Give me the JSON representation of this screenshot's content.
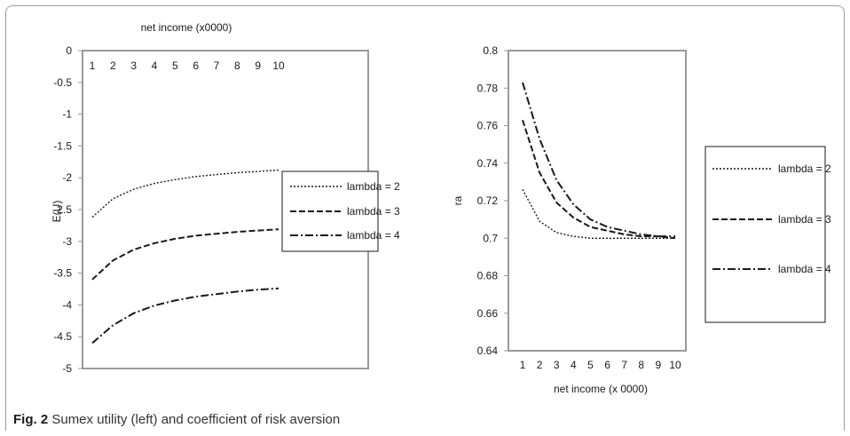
{
  "caption": {
    "label": "Fig. 2",
    "text": "Sumex utility (left) and coefficient of risk aversion"
  },
  "colors": {
    "plot_border": "#999999",
    "line": "#1a1a1a"
  },
  "chart_data": [
    {
      "id": "left",
      "type": "line",
      "xlabel": "net income (x0000)",
      "ylabel": "E(U)",
      "x": [
        1,
        2,
        3,
        4,
        5,
        6,
        7,
        8,
        9,
        10
      ],
      "xticks": [
        "1",
        "2",
        "3",
        "4",
        "5",
        "6",
        "7",
        "8",
        "9",
        "10"
      ],
      "xaxis_position": "top",
      "ylim": [
        -5,
        0
      ],
      "yticks": [
        0,
        -0.5,
        -1,
        -1.5,
        -2,
        -2.5,
        -3,
        -3.5,
        -4,
        -4.5,
        -5
      ],
      "ytick_labels": [
        "0",
        "-0.5",
        "-1",
        "-1.5",
        "-2",
        "-2.5",
        "-3",
        "-3.5",
        "-4",
        "-4.5",
        "-5"
      ],
      "grid": false,
      "legend_position": "right",
      "series": [
        {
          "name": "lambda = 2",
          "dash": "dotted",
          "values": [
            -2.62,
            -2.33,
            -2.18,
            -2.09,
            -2.03,
            -1.98,
            -1.95,
            -1.92,
            -1.9,
            -1.88
          ]
        },
        {
          "name": "lambda = 3",
          "dash": "dashed",
          "values": [
            -3.6,
            -3.3,
            -3.13,
            -3.03,
            -2.96,
            -2.91,
            -2.88,
            -2.85,
            -2.83,
            -2.81
          ]
        },
        {
          "name": "lambda = 4",
          "dash": "dashdot",
          "values": [
            -4.6,
            -4.32,
            -4.13,
            -4.01,
            -3.93,
            -3.87,
            -3.83,
            -3.79,
            -3.76,
            -3.74
          ]
        }
      ]
    },
    {
      "id": "right",
      "type": "line",
      "xlabel": "net income (x 0000)",
      "ylabel": "ra",
      "x": [
        1,
        2,
        3,
        4,
        5,
        6,
        7,
        8,
        9,
        10
      ],
      "xticks": [
        "1",
        "2",
        "3",
        "4",
        "5",
        "6",
        "7",
        "8",
        "9",
        "10"
      ],
      "xaxis_position": "bottom",
      "ylim": [
        0.64,
        0.8
      ],
      "yticks": [
        0.8,
        0.78,
        0.76,
        0.74,
        0.72,
        0.7,
        0.68,
        0.66,
        0.64
      ],
      "ytick_labels": [
        "0.8",
        "0.78",
        "0.76",
        "0.74",
        "0.72",
        "0.7",
        "0.68",
        "0.66",
        "0.64"
      ],
      "grid": false,
      "legend_position": "right",
      "series": [
        {
          "name": "lambda = 2",
          "dash": "dotted",
          "values": [
            0.726,
            0.709,
            0.703,
            0.701,
            0.7,
            0.7,
            0.7,
            0.7,
            0.7,
            0.7
          ]
        },
        {
          "name": "lambda = 3",
          "dash": "dashed",
          "values": [
            0.763,
            0.735,
            0.719,
            0.711,
            0.706,
            0.704,
            0.702,
            0.701,
            0.701,
            0.7
          ]
        },
        {
          "name": "lambda = 4",
          "dash": "dashdot",
          "values": [
            0.783,
            0.753,
            0.731,
            0.718,
            0.71,
            0.706,
            0.704,
            0.702,
            0.701,
            0.701
          ]
        }
      ]
    }
  ]
}
